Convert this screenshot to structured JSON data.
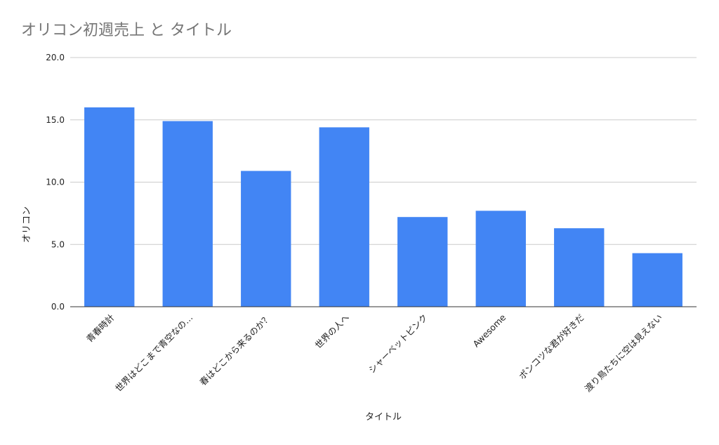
{
  "chart_data": {
    "type": "bar",
    "title": "オリコン初週売上 と タイトル",
    "xlabel": "タイトル",
    "ylabel": "オリコン",
    "ylim": [
      0,
      20
    ],
    "yticks": [
      "0.0",
      "5.0",
      "10.0",
      "15.0",
      "20.0"
    ],
    "grid": true,
    "legend": "none",
    "bar_color": "#4285f4",
    "categories": [
      "青春時計",
      "世界はどこまで青空なの…",
      "春はどこから来るのか？",
      "世界の人へ",
      "シャーベットピンク",
      "Awesome",
      "ポンコツな君が好きだ",
      "渡り鳥たちに空は見えない"
    ],
    "values": [
      16.0,
      14.9,
      10.9,
      14.4,
      7.2,
      7.7,
      6.3,
      4.3
    ]
  }
}
